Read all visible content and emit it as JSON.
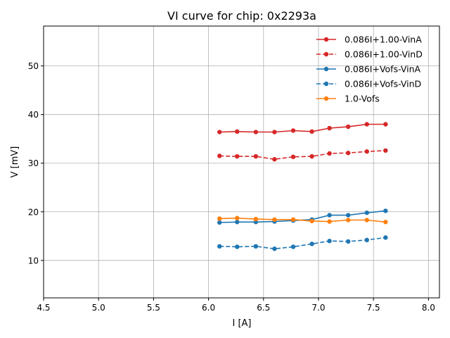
{
  "chart_data": {
    "type": "line",
    "title": "VI curve for chip: 0x2293a",
    "xlabel": "I [A]",
    "ylabel": "V [mV]",
    "xlim": [
      4.5,
      8.1
    ],
    "ylim": [
      2.3,
      58.2
    ],
    "grid": true,
    "legend_position": "top-right",
    "x_ticks": [
      "4.5",
      "5.0",
      "5.5",
      "6.0",
      "6.5",
      "7.0",
      "7.5",
      "8.0"
    ],
    "y_ticks": [
      "10",
      "20",
      "30",
      "40",
      "50"
    ],
    "x": [
      6.1,
      6.26,
      6.43,
      6.6,
      6.77,
      6.94,
      7.1,
      7.27,
      7.44,
      7.61
    ],
    "series": [
      {
        "name": "0.086I+1.00-VinA",
        "color": "#d62728",
        "dashed": false,
        "values": [
          36.4,
          36.5,
          36.4,
          36.4,
          36.7,
          36.5,
          37.2,
          37.5,
          38.0,
          38.0
        ]
      },
      {
        "name": "0.086I+1.00-VinD",
        "color": "#d62728",
        "dashed": true,
        "values": [
          31.5,
          31.4,
          31.4,
          30.8,
          31.3,
          31.4,
          32.0,
          32.1,
          32.4,
          32.6
        ]
      },
      {
        "name": "0.086I+Vofs-VinA",
        "color": "#1f77b4",
        "dashed": false,
        "values": [
          17.8,
          17.9,
          17.9,
          18.0,
          18.2,
          18.4,
          19.3,
          19.3,
          19.8,
          20.2
        ]
      },
      {
        "name": "0.086I+Vofs-VinD",
        "color": "#1f77b4",
        "dashed": true,
        "values": [
          12.9,
          12.8,
          12.9,
          12.4,
          12.8,
          13.4,
          14.0,
          13.9,
          14.2,
          14.7
        ]
      },
      {
        "name": "1.0-Vofs",
        "color": "#ff7f0e",
        "dashed": false,
        "values": [
          18.6,
          18.7,
          18.5,
          18.4,
          18.4,
          18.1,
          18.0,
          18.3,
          18.3,
          17.9
        ]
      }
    ]
  }
}
